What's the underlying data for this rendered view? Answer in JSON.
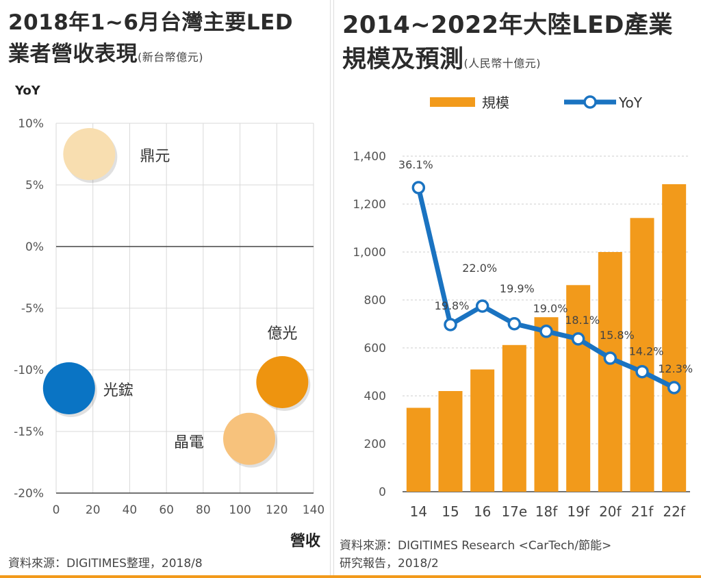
{
  "left_panel": {
    "title_line1": "2018年1~6月台灣主要LED",
    "title_line2": "業者營收表現",
    "unit": "(新台幣億元)",
    "source": "資料來源：DIGITIMES整理，2018/8"
  },
  "right_panel": {
    "title_line1": "2014~2022年大陸LED產業",
    "title_line2": "規模及預測",
    "unit": "(人民幣十億元)",
    "source_line1": "資料來源：DIGITIMES Research <CarTech/節能>",
    "source_line2": "研究報告，2018/2"
  },
  "chart_data": [
    {
      "type": "scatter",
      "ylabel": "YoY",
      "xlabel": "營收",
      "xlim": [
        0,
        140
      ],
      "ylim": [
        -20,
        10
      ],
      "x_ticks": [
        "0",
        "20",
        "40",
        "60",
        "80",
        "100",
        "120",
        "140"
      ],
      "y_ticks": [
        "10%",
        "5%",
        "0%",
        "-5%",
        "-10%",
        "-15%",
        "-20%"
      ],
      "grid": true,
      "points": [
        {
          "label": "鼎元",
          "x": 18,
          "y": 7.5,
          "color": "#f8deb0"
        },
        {
          "label": "光鋐",
          "x": 7,
          "y": -11.5,
          "color": "#0a74c4"
        },
        {
          "label": "晶電",
          "x": 105,
          "y": -15.6,
          "color": "#f7c27c"
        },
        {
          "label": "億光",
          "x": 123,
          "y": -11,
          "color": "#ee940f"
        }
      ]
    },
    {
      "type": "bar",
      "legend": [
        "規模",
        "YoY"
      ],
      "legend_position": "top",
      "categories": [
        "14",
        "15",
        "16",
        "17e",
        "18f",
        "19f",
        "20f",
        "21f",
        "22f"
      ],
      "series": [
        {
          "name": "規模",
          "type": "bar",
          "values": [
            350,
            420,
            510,
            612,
            728,
            862,
            1000,
            1142,
            1283
          ],
          "color": "#f29a1b"
        },
        {
          "name": "YoY",
          "type": "line",
          "values": [
            36.1,
            19.8,
            22.0,
            19.9,
            19.0,
            18.1,
            15.8,
            14.2,
            12.3
          ],
          "labels": [
            "36.1%",
            "19.8%",
            "22.0%",
            "19.9%",
            "19.0%",
            "18.1%",
            "15.8%",
            "14.2%",
            "12.3%"
          ],
          "color": "#1a73c1"
        }
      ],
      "ylim": [
        0,
        1400
      ],
      "y_ticks": [
        "0",
        "200",
        "400",
        "600",
        "800",
        "1,000",
        "1,200",
        "1,400"
      ],
      "grid": true
    }
  ]
}
